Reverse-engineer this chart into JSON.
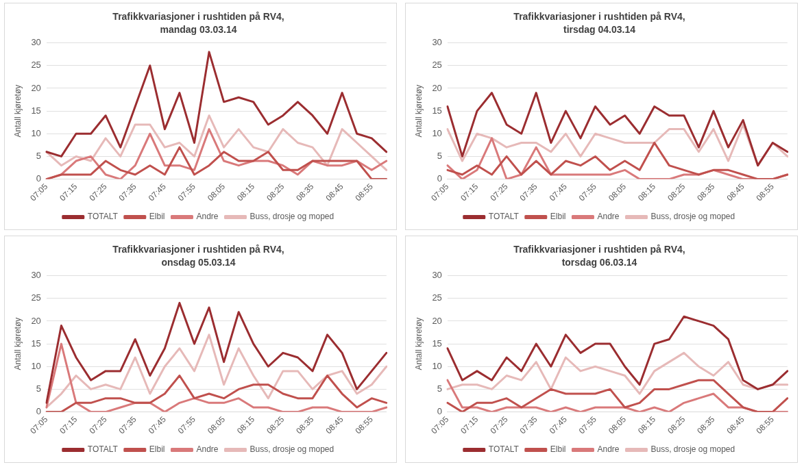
{
  "chart_data": [
    {
      "type": "line",
      "title": "Trafikkvariasjoner i rushtiden på RV4,",
      "subtitle": "mandag 03.03.14",
      "ylabel": "Antall kjøretøy",
      "categories": [
        "07:05",
        null,
        "07:15",
        null,
        "07:25",
        null,
        "07:35",
        null,
        "07:45",
        null,
        "07:55",
        null,
        "08:05",
        null,
        "08:15",
        null,
        "08:25",
        null,
        "08:35",
        null,
        "08:45",
        null,
        "08:55",
        null
      ],
      "ylim": [
        0,
        30
      ],
      "yticks": [
        0,
        5,
        10,
        15,
        20,
        25,
        30
      ],
      "grid": "y",
      "legend": "bottom",
      "marker": "none",
      "line_style": "solid",
      "series": [
        {
          "name": "TOTALT",
          "color": "#9b2d30",
          "values": [
            6,
            5,
            10,
            10,
            14,
            7,
            16,
            25,
            11,
            19,
            8,
            28,
            17,
            18,
            17,
            12,
            14,
            17,
            14,
            10,
            19,
            10,
            9,
            6
          ]
        },
        {
          "name": "Elbil",
          "color": "#c0504d",
          "values": [
            0,
            1,
            1,
            1,
            4,
            2,
            1,
            3,
            1,
            7,
            1,
            3,
            6,
            4,
            4,
            6,
            2,
            2,
            4,
            4,
            4,
            4,
            0,
            0
          ]
        },
        {
          "name": "Andre",
          "color": "#d9797a",
          "values": [
            0,
            1,
            4,
            5,
            1,
            0,
            3,
            10,
            3,
            3,
            2,
            11,
            4,
            3,
            4,
            4,
            3,
            1,
            4,
            3,
            3,
            4,
            2,
            4
          ]
        },
        {
          "name": "Buss, drosje og moped",
          "color": "#e6b9b8",
          "values": [
            6,
            3,
            5,
            4,
            9,
            5,
            12,
            12,
            7,
            8,
            5,
            14,
            7,
            11,
            7,
            6,
            11,
            8,
            7,
            3,
            11,
            8,
            5,
            2
          ]
        }
      ]
    },
    {
      "type": "line",
      "title": "Trafikkvariasjoner i rushtiden på RV4,",
      "subtitle": "tirsdag 04.03.14",
      "ylabel": "Antall kjøretøy",
      "categories": [
        "07:05",
        null,
        "07:15",
        null,
        "07:25",
        null,
        "07:35",
        null,
        "07:45",
        null,
        "07:55",
        null,
        "08:05",
        null,
        "08:15",
        null,
        "08:25",
        null,
        "08:35",
        null,
        "08:45",
        null,
        "08:55",
        null
      ],
      "ylim": [
        0,
        30
      ],
      "yticks": [
        0,
        5,
        10,
        15,
        20,
        25,
        30
      ],
      "grid": "y",
      "legend": "bottom",
      "marker": "none",
      "line_style": "solid",
      "series": [
        {
          "name": "TOTALT",
          "color": "#9b2d30",
          "values": [
            16,
            5,
            15,
            19,
            12,
            10,
            19,
            8,
            15,
            9,
            16,
            12,
            14,
            10,
            16,
            14,
            14,
            7,
            15,
            7,
            13,
            3,
            8,
            6
          ]
        },
        {
          "name": "Elbil",
          "color": "#c0504d",
          "values": [
            2,
            1,
            3,
            1,
            5,
            1,
            4,
            1,
            4,
            3,
            5,
            2,
            4,
            2,
            8,
            3,
            2,
            1,
            2,
            2,
            1,
            0,
            0,
            1
          ]
        },
        {
          "name": "Andre",
          "color": "#d9797a",
          "values": [
            3,
            0,
            2,
            9,
            0,
            1,
            7,
            1,
            1,
            1,
            1,
            1,
            2,
            0,
            0,
            0,
            1,
            1,
            2,
            1,
            0,
            0,
            0,
            1
          ]
        },
        {
          "name": "Buss, drosje og moped",
          "color": "#e6b9b8",
          "values": [
            11,
            4,
            10,
            9,
            7,
            8,
            8,
            6,
            10,
            5,
            10,
            9,
            8,
            8,
            8,
            11,
            11,
            6,
            11,
            4,
            12,
            3,
            8,
            5
          ]
        }
      ]
    },
    {
      "type": "line",
      "title": "Trafikkvariasjoner i rushtiden på RV4,",
      "subtitle": "onsdag 05.03.14",
      "ylabel": "Antall kjøretøy",
      "categories": [
        "07:05",
        null,
        "07:15",
        null,
        "07:25",
        null,
        "07:35",
        null,
        "07:45",
        null,
        "07:55",
        null,
        "08:05",
        null,
        "08:15",
        null,
        "08:25",
        null,
        "08:35",
        null,
        "08:45",
        null,
        "08:55",
        null
      ],
      "ylim": [
        0,
        30
      ],
      "yticks": [
        0,
        5,
        10,
        15,
        20,
        25,
        30
      ],
      "grid": "y",
      "legend": "bottom",
      "marker": "none",
      "line_style": "solid",
      "series": [
        {
          "name": "TOTALT",
          "color": "#9b2d30",
          "values": [
            2,
            19,
            12,
            7,
            9,
            9,
            16,
            8,
            14,
            24,
            15,
            23,
            11,
            22,
            15,
            10,
            13,
            12,
            9,
            17,
            13,
            5,
            9,
            13
          ]
        },
        {
          "name": "Elbil",
          "color": "#c0504d",
          "values": [
            0,
            0,
            2,
            2,
            3,
            3,
            2,
            2,
            4,
            8,
            3,
            4,
            3,
            5,
            6,
            6,
            4,
            3,
            3,
            8,
            4,
            1,
            3,
            2
          ]
        },
        {
          "name": "Andre",
          "color": "#d9797a",
          "values": [
            1,
            15,
            2,
            0,
            0,
            1,
            2,
            2,
            0,
            2,
            3,
            2,
            2,
            3,
            1,
            1,
            0,
            0,
            1,
            1,
            0,
            0,
            0,
            1
          ]
        },
        {
          "name": "Buss, drosje og moped",
          "color": "#e6b9b8",
          "values": [
            1,
            4,
            8,
            5,
            6,
            5,
            12,
            4,
            10,
            14,
            9,
            17,
            6,
            14,
            8,
            3,
            9,
            9,
            5,
            8,
            9,
            4,
            6,
            10
          ]
        }
      ]
    },
    {
      "type": "line",
      "title": "Trafikkvariasjoner i rushtiden på RV4,",
      "subtitle": "torsdag 06.03.14",
      "ylabel": "Antall kjøretøy",
      "categories": [
        "07:05",
        null,
        "07:15",
        null,
        "07:25",
        null,
        "07:35",
        null,
        "07:45",
        null,
        "07:55",
        null,
        "08:05",
        null,
        "08:15",
        null,
        "08:25",
        null,
        "08:35",
        null,
        "08:45",
        null,
        "08:55",
        null
      ],
      "ylim": [
        0,
        30
      ],
      "yticks": [
        0,
        5,
        10,
        15,
        20,
        25,
        30
      ],
      "grid": "y",
      "legend": "bottom",
      "marker": "none",
      "line_style": "solid",
      "series": [
        {
          "name": "TOTALT",
          "color": "#9b2d30",
          "values": [
            14,
            7,
            9,
            7,
            12,
            9,
            15,
            10,
            17,
            13,
            15,
            15,
            10,
            6,
            15,
            16,
            21,
            20,
            19,
            16,
            7,
            5,
            6,
            9
          ]
        },
        {
          "name": "Elbil",
          "color": "#c0504d",
          "values": [
            2,
            0,
            2,
            2,
            3,
            1,
            3,
            5,
            4,
            4,
            4,
            5,
            1,
            2,
            5,
            5,
            6,
            7,
            7,
            4,
            1,
            0,
            0,
            3
          ]
        },
        {
          "name": "Andre",
          "color": "#d9797a",
          "values": [
            7,
            1,
            1,
            0,
            1,
            1,
            1,
            0,
            1,
            0,
            1,
            1,
            1,
            0,
            1,
            0,
            2,
            3,
            4,
            1,
            1,
            0,
            0,
            0
          ]
        },
        {
          "name": "Buss, drosje og moped",
          "color": "#e6b9b8",
          "values": [
            5,
            6,
            6,
            5,
            8,
            7,
            11,
            5,
            12,
            9,
            10,
            9,
            8,
            4,
            9,
            11,
            13,
            10,
            8,
            11,
            6,
            5,
            6,
            6
          ]
        }
      ]
    }
  ]
}
